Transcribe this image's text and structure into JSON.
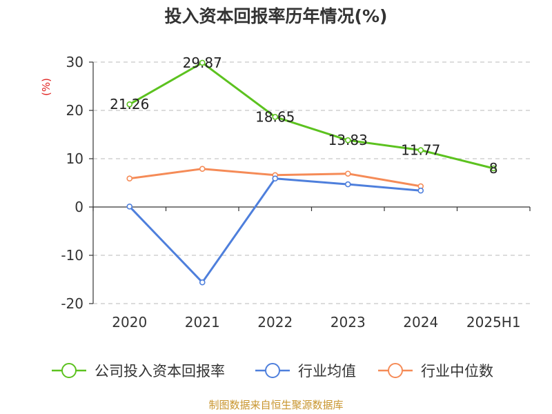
{
  "chart_data": {
    "type": "line",
    "title": "投入资本回报率历年情况(%)",
    "ylabel": "(%)",
    "categories": [
      "2020",
      "2021",
      "2022",
      "2023",
      "2024",
      "2025H1"
    ],
    "ylim": [
      -20,
      30
    ],
    "yticks": [
      "30",
      "20",
      "10",
      "0",
      "-10",
      "-20"
    ],
    "grid": true,
    "legend_position": "bottom",
    "series": [
      {
        "name": "公司投入资本回报率",
        "color": "#5cc21f",
        "values": [
          21.26,
          29.87,
          18.65,
          13.83,
          11.77,
          8
        ],
        "labels": [
          "21.26",
          "29.87",
          "18.65",
          "13.83",
          "11.77",
          "8"
        ]
      },
      {
        "name": "行业均值",
        "color": "#4e7fdc",
        "values": [
          0.1,
          -15.6,
          5.9,
          4.7,
          3.4,
          null
        ]
      },
      {
        "name": "行业中位数",
        "color": "#f58b57",
        "values": [
          5.9,
          7.9,
          6.6,
          6.9,
          4.3,
          null
        ]
      }
    ]
  },
  "footer": {
    "source": "制图数据来自恒生聚源数据库",
    "source_color": "#c8952e"
  },
  "colors": {
    "ylabel": "#e0201e",
    "axis": "#333333",
    "grid": "#c8c8c8"
  }
}
